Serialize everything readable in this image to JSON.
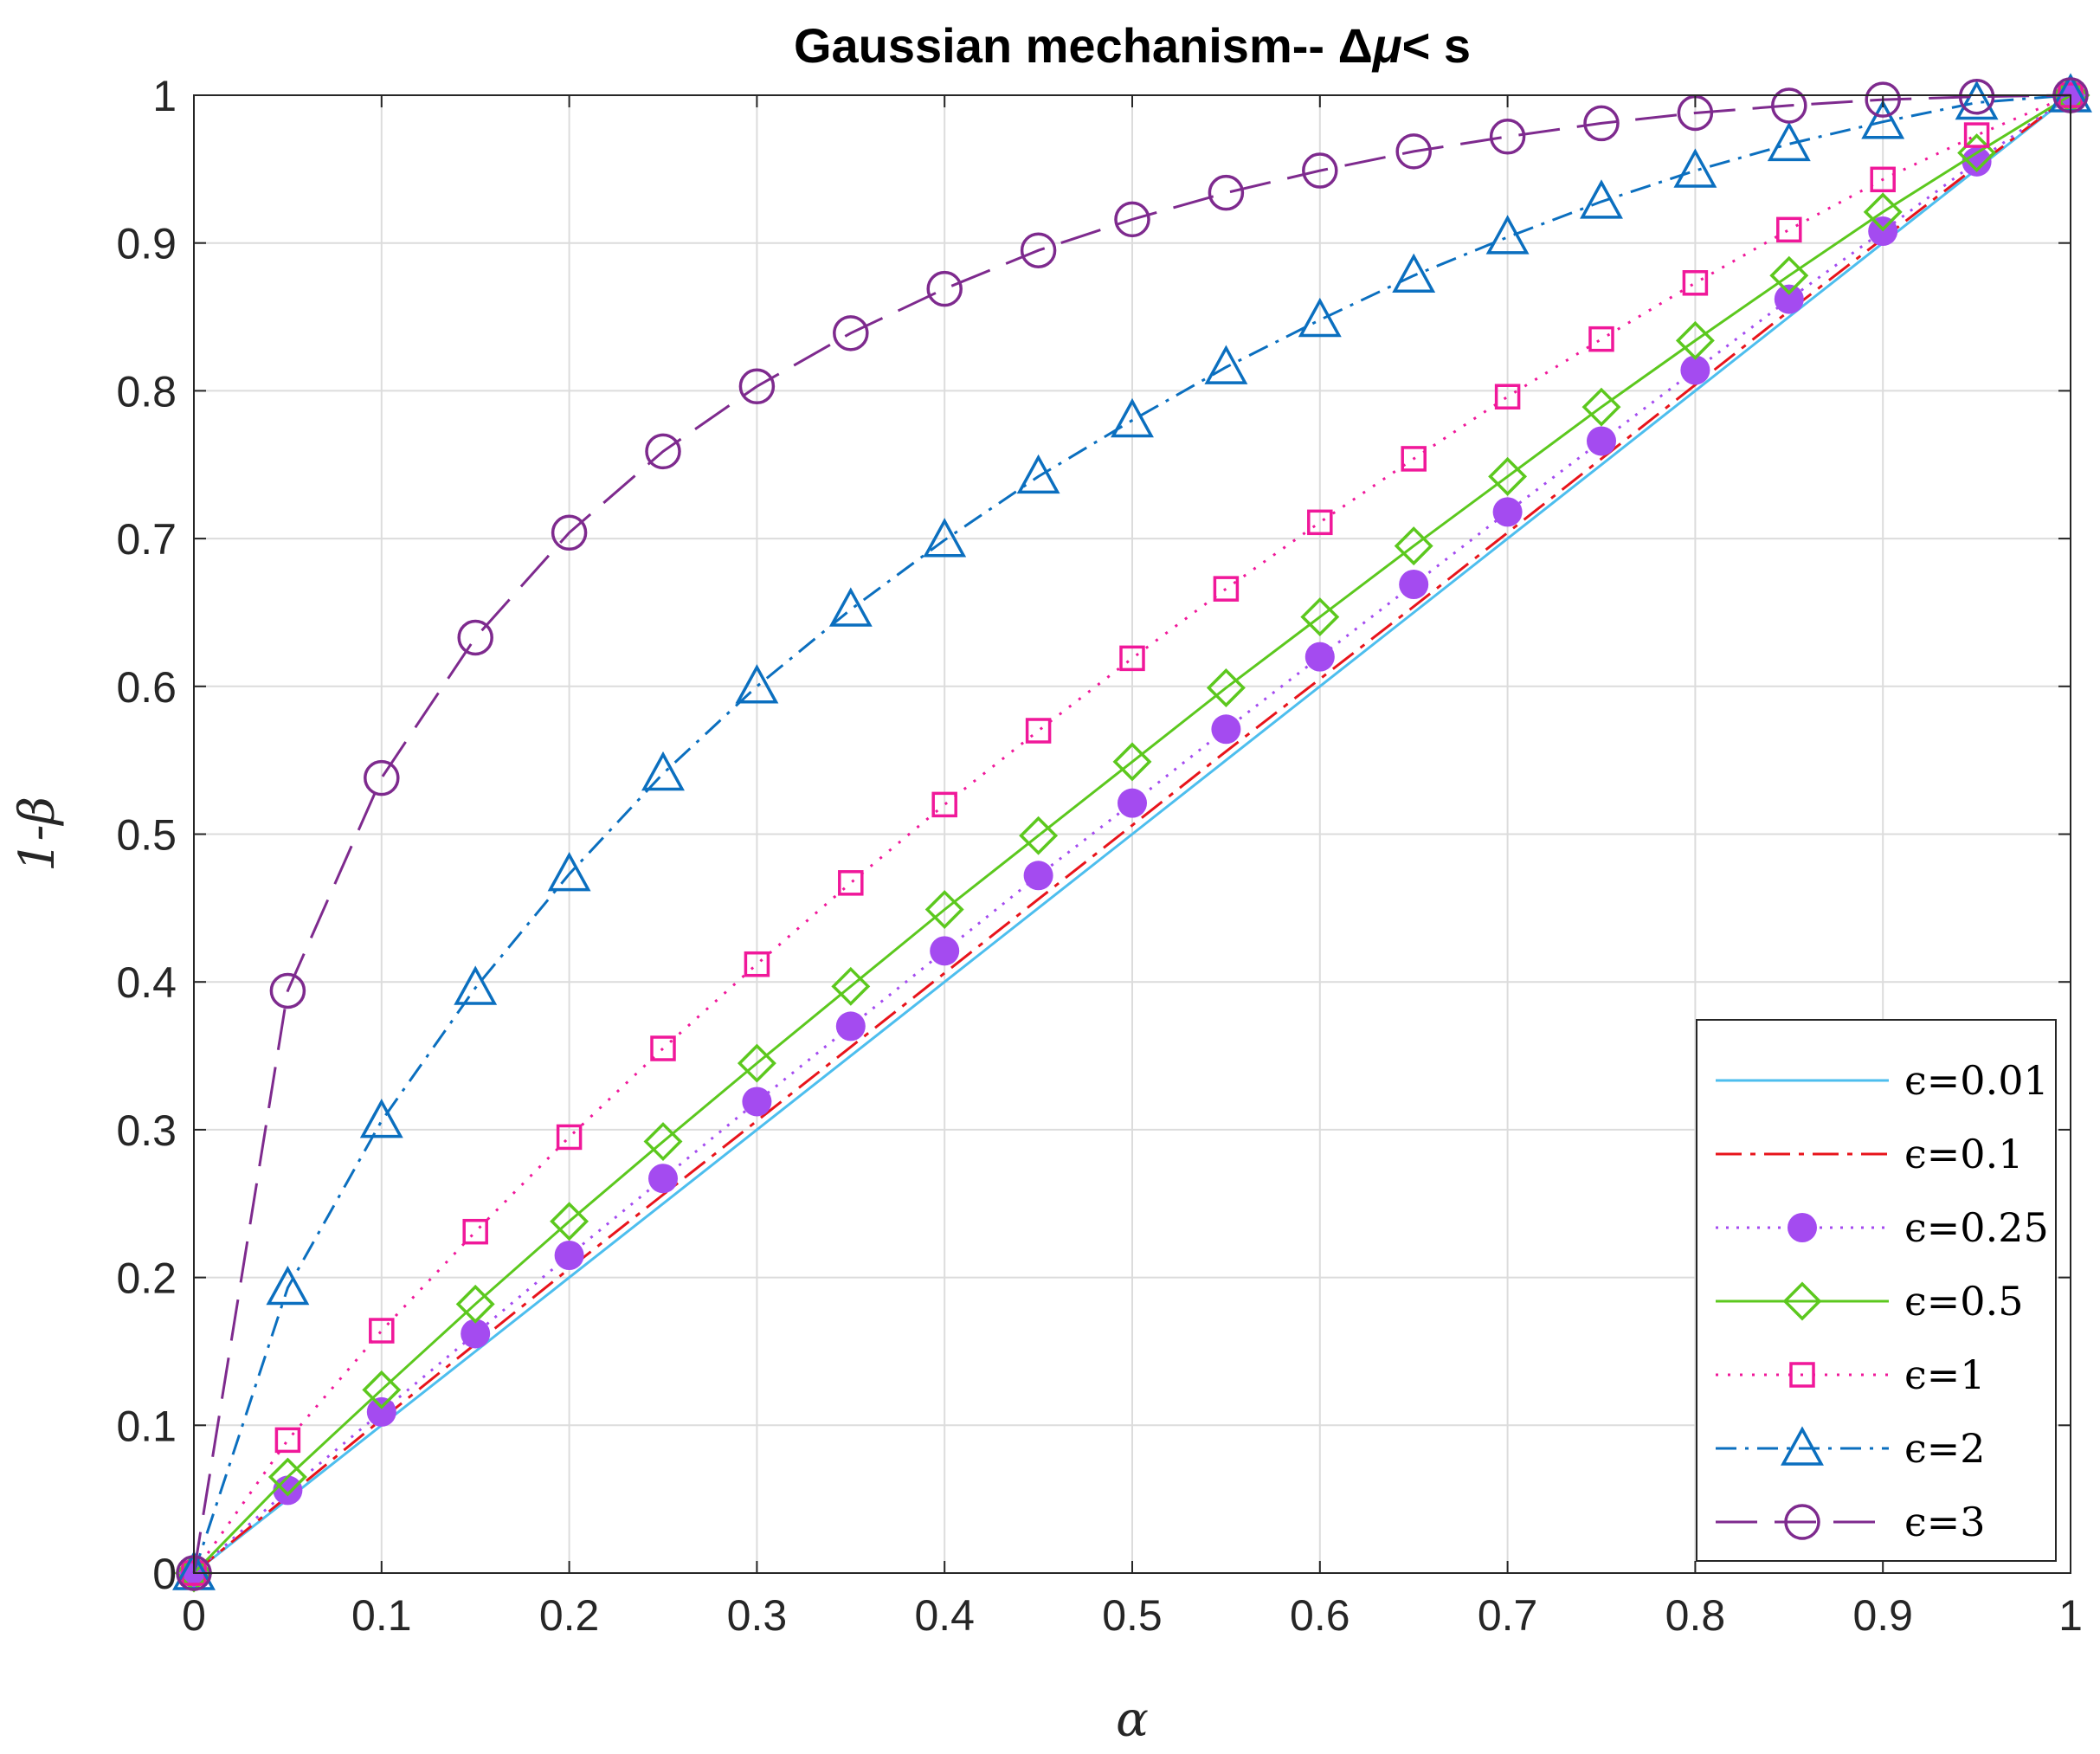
{
  "chart_data": {
    "type": "line",
    "title_prefix": "Gaussian mechanism-- ",
    "title_delta": "Δ",
    "title_mu": "μ",
    "title_suffix": "< s",
    "xlabel": "α",
    "ylabel": "1-β",
    "xlim": [
      0,
      1
    ],
    "ylim": [
      0,
      1
    ],
    "grid": true,
    "legend_position": "bottom-right",
    "xticks": [
      "0",
      "0.1",
      "0.2",
      "0.3",
      "0.4",
      "0.5",
      "0.6",
      "0.7",
      "0.8",
      "0.9",
      "1"
    ],
    "yticks": [
      "0",
      "0.1",
      "0.2",
      "0.3",
      "0.4",
      "0.5",
      "0.6",
      "0.7",
      "0.8",
      "0.9",
      "1"
    ],
    "x": [
      0,
      0.05,
      0.1,
      0.15,
      0.2,
      0.25,
      0.3,
      0.35,
      0.4,
      0.45,
      0.5,
      0.55,
      0.6,
      0.65,
      0.7,
      0.75,
      0.8,
      0.85,
      0.9,
      0.95,
      1
    ],
    "series": [
      {
        "name": "ϵ=0.01",
        "color": "#4DBEEE",
        "dash": "",
        "marker": "none",
        "values": [
          0,
          0.05,
          0.1,
          0.15,
          0.2,
          0.25,
          0.3,
          0.35,
          0.4,
          0.45,
          0.5,
          0.55,
          0.6,
          0.65,
          0.7,
          0.75,
          0.8,
          0.85,
          0.9,
          0.95,
          1
        ]
      },
      {
        "name": "ϵ=0.1",
        "color": "#E8141B",
        "dash": "30,10,6,10",
        "marker": "none",
        "values": [
          0,
          0.052,
          0.104,
          0.155,
          0.206,
          0.256,
          0.306,
          0.356,
          0.406,
          0.456,
          0.506,
          0.556,
          0.605,
          0.654,
          0.704,
          0.754,
          0.804,
          0.854,
          0.903,
          0.952,
          1
        ]
      },
      {
        "name": "ϵ=0.25",
        "color": "#A44BF0",
        "dash": "3,9",
        "marker": "dot",
        "values": [
          0,
          0.056,
          0.109,
          0.162,
          0.215,
          0.267,
          0.319,
          0.37,
          0.421,
          0.472,
          0.521,
          0.571,
          0.62,
          0.669,
          0.718,
          0.766,
          0.814,
          0.862,
          0.908,
          0.955,
          1
        ]
      },
      {
        "name": "ϵ=0.5",
        "color": "#5CC81E",
        "dash": "",
        "marker": "diamond",
        "values": [
          0,
          0.065,
          0.124,
          0.182,
          0.238,
          0.292,
          0.345,
          0.397,
          0.449,
          0.499,
          0.549,
          0.599,
          0.647,
          0.695,
          0.742,
          0.789,
          0.834,
          0.878,
          0.921,
          0.961,
          1
        ]
      },
      {
        "name": "ϵ=1",
        "color": "#F0189A",
        "dash": "3,11",
        "marker": "square",
        "values": [
          0,
          0.09,
          0.164,
          0.231,
          0.295,
          0.355,
          0.412,
          0.467,
          0.52,
          0.57,
          0.619,
          0.666,
          0.711,
          0.754,
          0.796,
          0.835,
          0.873,
          0.909,
          0.943,
          0.973,
          1
        ]
      },
      {
        "name": "ϵ=2",
        "color": "#0B6FBF",
        "dash": "24,10,4,10",
        "marker": "triangle",
        "values": [
          0,
          0.193,
          0.306,
          0.396,
          0.473,
          0.541,
          0.6,
          0.652,
          0.699,
          0.742,
          0.78,
          0.816,
          0.848,
          0.878,
          0.904,
          0.928,
          0.949,
          0.967,
          0.982,
          0.995,
          1
        ]
      },
      {
        "name": "ϵ=3",
        "color": "#7E2A8E",
        "dash": "48,20",
        "marker": "circle",
        "values": [
          0,
          0.394,
          0.538,
          0.633,
          0.704,
          0.759,
          0.803,
          0.839,
          0.869,
          0.895,
          0.916,
          0.934,
          0.949,
          0.962,
          0.972,
          0.981,
          0.988,
          0.993,
          0.997,
          0.999,
          1
        ]
      }
    ]
  }
}
